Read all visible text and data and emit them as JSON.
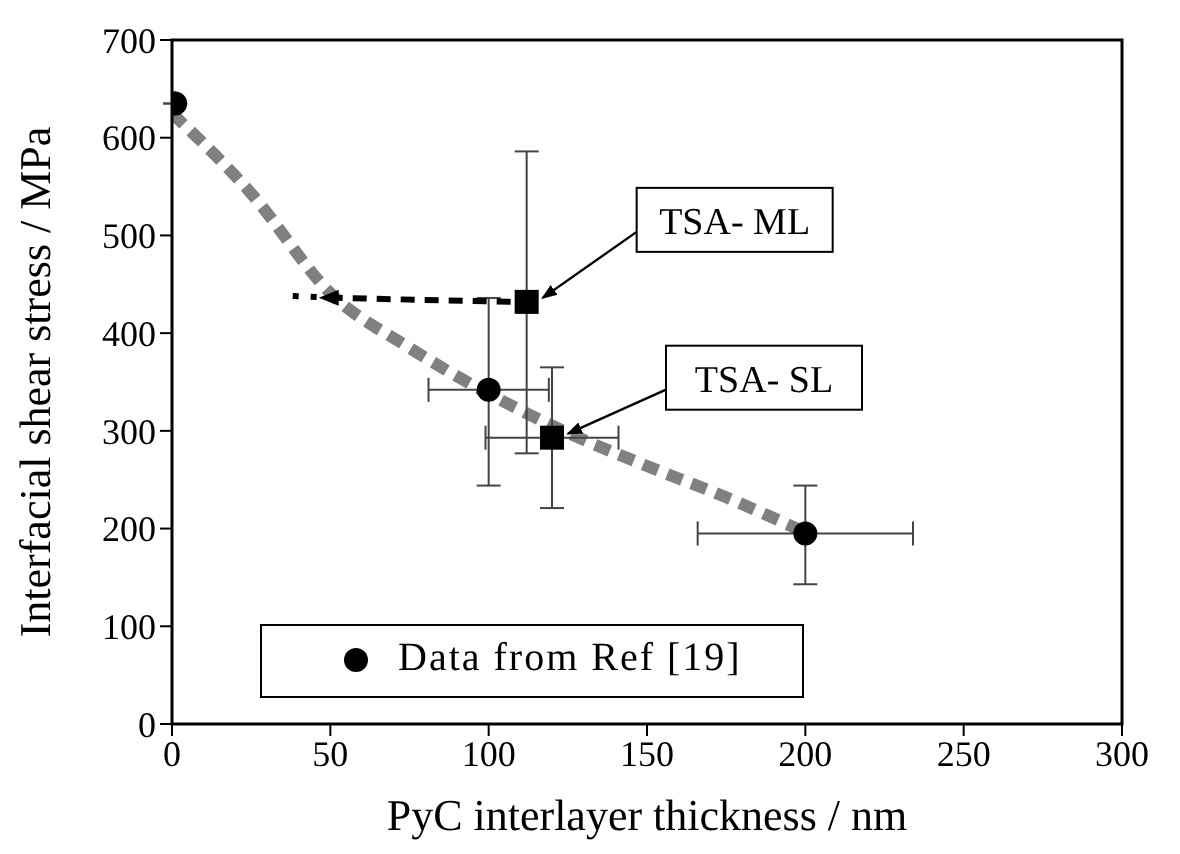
{
  "chart_data": {
    "type": "scatter",
    "xlabel": "PyC interlayer thickness / nm",
    "ylabel": "Interfacial shear stress / MPa",
    "xlim": [
      0,
      300
    ],
    "ylim": [
      0,
      700
    ],
    "xticks": [
      0,
      50,
      100,
      150,
      200,
      250,
      300
    ],
    "yticks": [
      0,
      100,
      200,
      300,
      400,
      500,
      600,
      700
    ],
    "grid": false,
    "legend": "bottom",
    "series": [
      {
        "type": "line",
        "color": "#808080",
        "line_style": "dashed",
        "marker": "none",
        "x": [
          0,
          25,
          50,
          75,
          100,
          125,
          150,
          175,
          198
        ],
        "values": [
          625,
          543,
          441,
          385,
          338,
          298,
          264,
          232,
          199
        ]
      },
      {
        "name": "Data from Ref [19]",
        "marker": "circle",
        "color": "#000000",
        "x": [
          1,
          100,
          200
        ],
        "values": [
          635,
          342,
          195
        ],
        "errors": [
          null,
          [
            244,
            436
          ],
          [
            143,
            244
          ]
        ],
        "xerrors": [
          null,
          [
            81,
            119
          ],
          [
            166,
            234
          ]
        ]
      },
      {
        "marker": "square",
        "color": "#000000",
        "x": [
          112,
          120
        ],
        "values": [
          432,
          293
        ],
        "errors": [
          [
            277,
            586
          ],
          [
            221,
            365
          ]
        ],
        "xerrors": [
          null,
          [
            99,
            141
          ]
        ]
      }
    ],
    "annotations": [
      {
        "text": "TSA- ML",
        "x": 112,
        "y": 432
      },
      {
        "text": "TSA- SL",
        "x": 120,
        "y": 293
      }
    ]
  }
}
